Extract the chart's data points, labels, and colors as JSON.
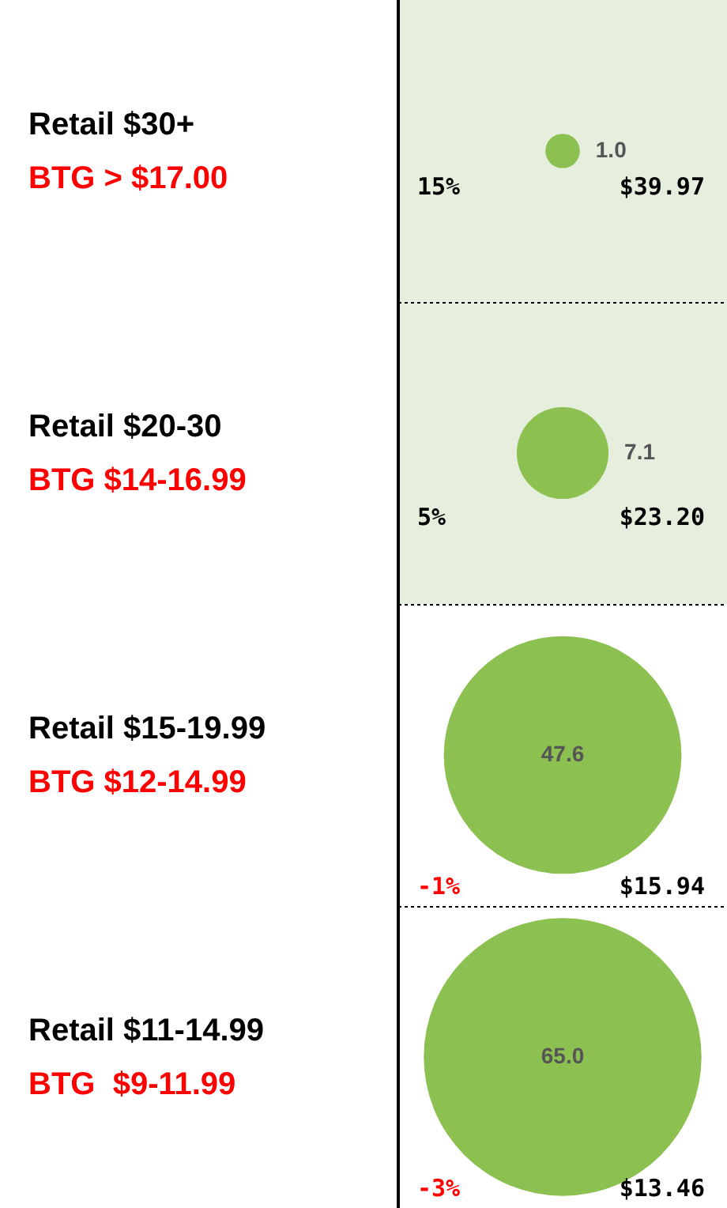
{
  "chart_data": {
    "type": "other",
    "categories": [
      "Retail $30+",
      "Retail $20-30",
      "Retail $15-19.99",
      "Retail $11-14.99"
    ],
    "values": [
      1.0,
      7.1,
      47.6,
      65.0
    ],
    "value_labels": [
      "1.0",
      "7.1",
      "47.6",
      "65.0"
    ],
    "colors": [
      "#8cc152",
      "#8cc152",
      "#8cc152",
      "#8cc152"
    ],
    "series": [
      {
        "values": [
          15,
          5,
          -1,
          -3
        ],
        "value_labels": [
          "15%",
          "5%",
          "-1%",
          "-3%"
        ]
      },
      {
        "values": [
          39.97,
          23.2,
          15.94,
          13.46
        ],
        "value_labels": [
          "$39.97",
          "$23.20",
          "$15.94",
          "$13.46"
        ]
      }
    ],
    "annotations": [
      {
        "text": "BTG > $17.00",
        "y": "Retail $30+"
      },
      {
        "text": "BTG $14-16.99",
        "y": "Retail $20-30"
      },
      {
        "text": "BTG $12-14.99",
        "y": "Retail $15-19.99"
      },
      {
        "text": "BTG  $9-11.99",
        "y": "Retail $11-14.99"
      }
    ]
  }
}
